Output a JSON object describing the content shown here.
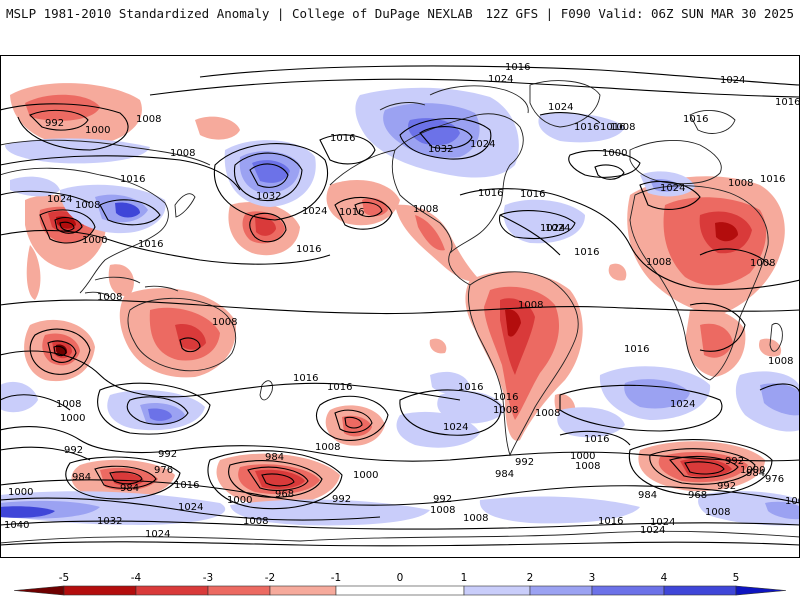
{
  "header": {
    "title_left": "MSLP 1981-2010 Standardized Anomaly | College of DuPage NEXLAB",
    "title_right": "12Z GFS | F090 Valid: 06Z SUN MAR 30 2025"
  },
  "colorbar": {
    "ticks": [
      "-5",
      "-4",
      "-3",
      "-2",
      "-1",
      "0",
      "1",
      "2",
      "3",
      "4",
      "5"
    ],
    "colors": {
      "neg5": "#6e0000",
      "neg4": "#b30d0d",
      "neg3": "#d93a3a",
      "neg2": "#ec6a62",
      "neg1": "#f6aa9c",
      "neutral": "#ffffff",
      "pos1": "#c9cdfa",
      "pos2": "#9ba2f2",
      "pos3": "#6c72e8",
      "pos4": "#3f46d8",
      "pos5": "#0e14c0"
    }
  },
  "map": {
    "labels": [
      {
        "id": "l01",
        "text": "1016"
      },
      {
        "id": "l02",
        "text": "1024"
      },
      {
        "id": "l03",
        "text": "992"
      },
      {
        "id": "l04",
        "text": "1000"
      },
      {
        "id": "l05",
        "text": "1008"
      },
      {
        "id": "l06",
        "text": "1008"
      },
      {
        "id": "l07",
        "text": "1016"
      },
      {
        "id": "l08",
        "text": "1032"
      },
      {
        "id": "l09",
        "text": "1024"
      },
      {
        "id": "l10",
        "text": "1008"
      },
      {
        "id": "l11",
        "text": "1024"
      },
      {
        "id": "l12",
        "text": "1000"
      },
      {
        "id": "l13",
        "text": "1016"
      },
      {
        "id": "l14",
        "text": "1016"
      },
      {
        "id": "l15",
        "text": "1016"
      },
      {
        "id": "l16",
        "text": "1032"
      },
      {
        "id": "l17",
        "text": "1024"
      },
      {
        "id": "l18",
        "text": "1024"
      },
      {
        "id": "l19",
        "text": "1016"
      },
      {
        "id": "l20",
        "text": "1016"
      },
      {
        "id": "l21",
        "text": "1008"
      },
      {
        "id": "l22",
        "text": "1016"
      },
      {
        "id": "l23",
        "text": "1024"
      },
      {
        "id": "l24",
        "text": "1016"
      },
      {
        "id": "l25",
        "text": "1024"
      },
      {
        "id": "l26",
        "text": "1016"
      },
      {
        "id": "l27",
        "text": "1008"
      },
      {
        "id": "l28",
        "text": "1000"
      },
      {
        "id": "l29",
        "text": "1024"
      },
      {
        "id": "l30",
        "text": "1008"
      },
      {
        "id": "l31",
        "text": "1016"
      },
      {
        "id": "l32",
        "text": "1008"
      },
      {
        "id": "l33",
        "text": "1008"
      },
      {
        "id": "l34",
        "text": "1008"
      },
      {
        "id": "l35",
        "text": "1008"
      },
      {
        "id": "l36",
        "text": "1008"
      },
      {
        "id": "l37",
        "text": "1016"
      },
      {
        "id": "l38",
        "text": "1016"
      },
      {
        "id": "l39",
        "text": "1016"
      },
      {
        "id": "l40",
        "text": "1024"
      },
      {
        "id": "l41",
        "text": "1016"
      },
      {
        "id": "l42",
        "text": "1008"
      },
      {
        "id": "l43",
        "text": "984"
      },
      {
        "id": "l44",
        "text": "1024"
      },
      {
        "id": "l45",
        "text": "1016"
      },
      {
        "id": "l46",
        "text": "1008"
      },
      {
        "id": "l47",
        "text": "1016"
      },
      {
        "id": "l48",
        "text": "1024"
      },
      {
        "id": "l49",
        "text": "1008"
      },
      {
        "id": "l50",
        "text": "1016"
      },
      {
        "id": "l51",
        "text": "1008"
      },
      {
        "id": "l52",
        "text": "1016"
      },
      {
        "id": "l53",
        "text": "1008"
      },
      {
        "id": "l54",
        "text": "1000"
      },
      {
        "id": "l55",
        "text": "992"
      },
      {
        "id": "l56",
        "text": "984"
      },
      {
        "id": "l57",
        "text": "976"
      },
      {
        "id": "l58",
        "text": "984"
      },
      {
        "id": "l59",
        "text": "1016"
      },
      {
        "id": "l60",
        "text": "992"
      },
      {
        "id": "l61",
        "text": "1000"
      },
      {
        "id": "l62",
        "text": "984"
      },
      {
        "id": "l63",
        "text": "968"
      },
      {
        "id": "l64",
        "text": "1000"
      },
      {
        "id": "l65",
        "text": "1024"
      },
      {
        "id": "l66",
        "text": "992"
      },
      {
        "id": "l67",
        "text": "992"
      },
      {
        "id": "l68",
        "text": "1000"
      },
      {
        "id": "l69",
        "text": "1008"
      },
      {
        "id": "l70",
        "text": "1032"
      },
      {
        "id": "l71",
        "text": "1040"
      },
      {
        "id": "l72",
        "text": "1024"
      },
      {
        "id": "l73",
        "text": "1008"
      },
      {
        "id": "l74",
        "text": "1000"
      },
      {
        "id": "l75",
        "text": "1008"
      },
      {
        "id": "l76",
        "text": "992"
      },
      {
        "id": "l77",
        "text": "1000"
      },
      {
        "id": "l78",
        "text": "984"
      },
      {
        "id": "l79",
        "text": "992"
      },
      {
        "id": "l80",
        "text": "968"
      },
      {
        "id": "l81",
        "text": "984"
      },
      {
        "id": "l82",
        "text": "976"
      },
      {
        "id": "l83",
        "text": "1000"
      },
      {
        "id": "l84",
        "text": "992"
      },
      {
        "id": "l85",
        "text": "1008"
      },
      {
        "id": "l86",
        "text": "1016"
      },
      {
        "id": "l87",
        "text": "1024"
      },
      {
        "id": "l88",
        "text": "1024"
      },
      {
        "id": "l89",
        "text": "1008"
      },
      {
        "id": "l90",
        "text": "1016"
      }
    ]
  }
}
